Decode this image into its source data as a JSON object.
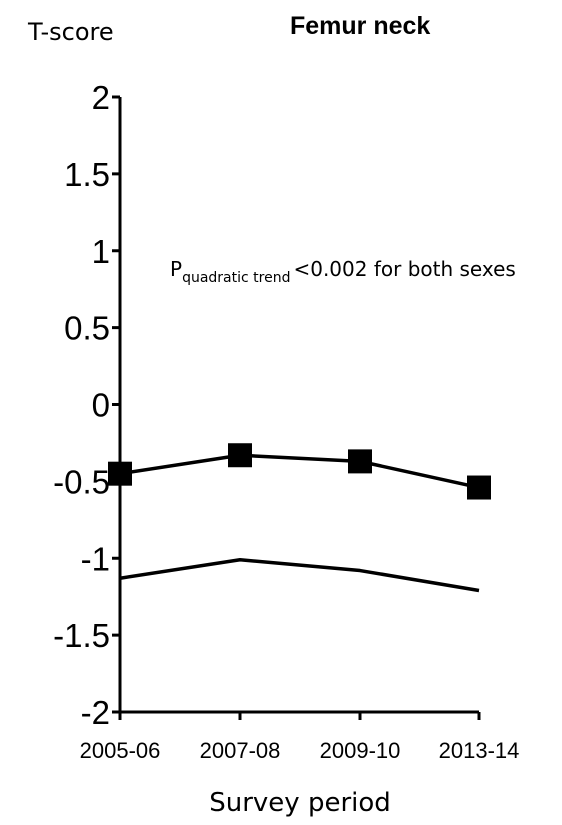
{
  "chart_data": {
    "type": "line",
    "title": "Femur neck",
    "ylabel": "T-score",
    "xlabel": "Survey period",
    "categories": [
      "2005-06",
      "2007-08",
      "2009-10",
      "2013-14"
    ],
    "ylim": [
      -2,
      2
    ],
    "yticks": [
      2,
      1.5,
      1,
      0.5,
      0,
      -0.5,
      -1,
      -1.5,
      -2
    ],
    "ytick_labels": [
      "2",
      "1.5",
      "1",
      "0.5",
      "0",
      "-0.5",
      "-1",
      "-1.5",
      "-2"
    ],
    "grid": false,
    "annotation": {
      "main": "P",
      "subscript": "quadratic trend",
      "rest": "<0.002 for both sexes"
    },
    "series": [
      {
        "values": [
          -0.45,
          -0.33,
          -0.37,
          -0.54
        ],
        "marker": "square",
        "color": "#000000"
      },
      {
        "values": [
          -1.13,
          -1.01,
          -1.08,
          -1.21
        ],
        "marker": "none",
        "color": "#000000"
      }
    ]
  }
}
